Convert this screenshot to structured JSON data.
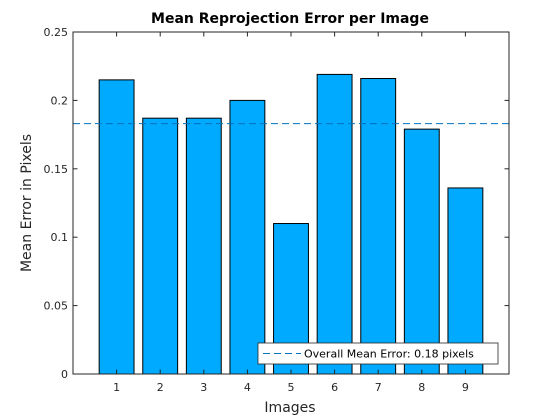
{
  "chart_data": {
    "type": "bar",
    "title": "Mean Reprojection Error per Image",
    "xlabel": "Images",
    "ylabel": "Mean Error in Pixels",
    "categories": [
      "1",
      "2",
      "3",
      "4",
      "5",
      "6",
      "7",
      "8",
      "9"
    ],
    "values": [
      0.215,
      0.187,
      0.187,
      0.2,
      0.11,
      0.219,
      0.216,
      0.179,
      0.136
    ],
    "ylim": [
      0,
      0.25
    ],
    "yticks": [
      "0",
      "0.05",
      "0.1",
      "0.15",
      "0.2",
      "0.25"
    ],
    "grid": false,
    "bar_color": "#00aaff",
    "reference_line": {
      "value": 0.183,
      "style": "dashed",
      "color": "#0072bd",
      "label": "Overall Mean Error: 0.18 pixels"
    },
    "legend": {
      "placement": "bottom-right",
      "entries": [
        "Overall Mean Error: 0.18 pixels"
      ]
    }
  }
}
